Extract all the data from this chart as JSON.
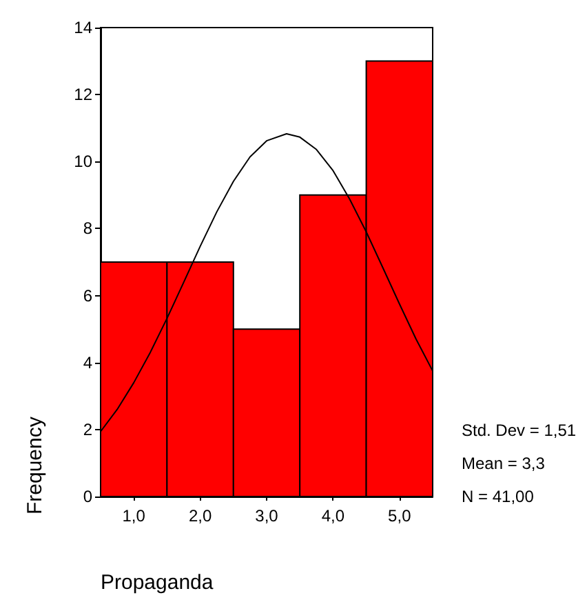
{
  "chart_data": {
    "type": "histogram",
    "xlabel": "Propaganda",
    "ylabel": "Frequency",
    "bins": [
      0.5,
      1.5,
      2.5,
      3.5,
      4.5,
      5.5
    ],
    "values": [
      7,
      7,
      5,
      9,
      13
    ],
    "color": "#ff0000",
    "series": [
      {
        "type": "line",
        "color": "#000000",
        "x": [
          0.5,
          0.75,
          1.0,
          1.25,
          1.5,
          1.75,
          2.0,
          2.25,
          2.5,
          2.75,
          3.0,
          3.3,
          3.5,
          3.75,
          4.0,
          4.25,
          4.5,
          4.75,
          5.0,
          5.25,
          5.5
        ],
        "values": [
          1.94,
          2.6,
          3.4,
          4.31,
          5.32,
          6.39,
          7.47,
          8.5,
          9.41,
          10.14,
          10.62,
          10.83,
          10.73,
          10.36,
          9.73,
          8.88,
          7.9,
          6.83,
          5.75,
          4.7,
          3.75
        ]
      }
    ],
    "xlim": [
      0.5,
      5.5
    ],
    "ylim": [
      0,
      14
    ],
    "xticks": [
      {
        "value": 1,
        "label": "1,0"
      },
      {
        "value": 2,
        "label": "2,0"
      },
      {
        "value": 3,
        "label": "3,0"
      },
      {
        "value": 4,
        "label": "4,0"
      },
      {
        "value": 5,
        "label": "5,0"
      }
    ],
    "yticks": [
      0,
      2,
      4,
      6,
      8,
      10,
      12,
      14
    ],
    "annotations": [
      "Std. Dev = 1,51",
      "Mean = 3,3",
      "N = 41,00"
    ],
    "grid": false,
    "marker": "none",
    "line_style": "solid"
  }
}
